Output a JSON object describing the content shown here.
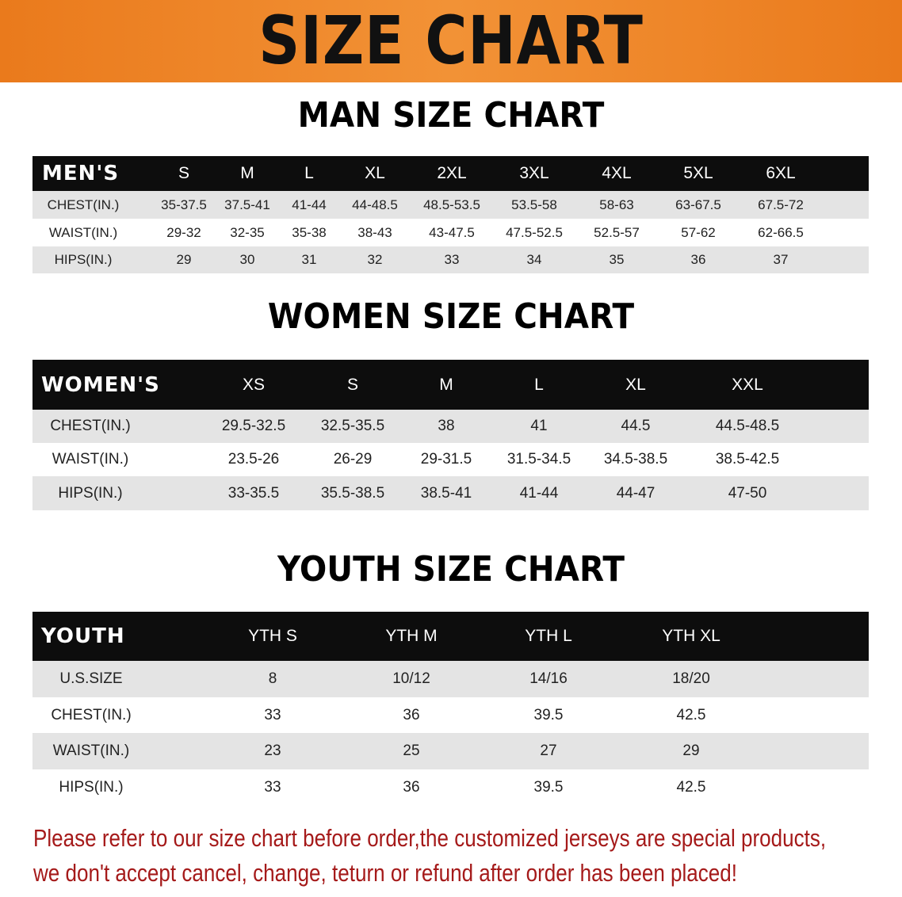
{
  "title": "SIZE CHART",
  "colors": {
    "banner": "#ea7a1c",
    "header_row": "#0d0d0d",
    "stripe": "#e4e4e4",
    "note": "#a51a1a"
  },
  "men": {
    "title": "MAN SIZE CHART",
    "header": [
      "MEN'S",
      "S",
      "M",
      "L",
      "XL",
      "2XL",
      "3XL",
      "4XL",
      "5XL",
      "6XL"
    ],
    "rows": [
      [
        "CHEST(IN.)",
        "35-37.5",
        "37.5-41",
        "41-44",
        "44-48.5",
        "48.5-53.5",
        "53.5-58",
        "58-63",
        "63-67.5",
        "67.5-72"
      ],
      [
        "WAIST(IN.)",
        "29-32",
        "32-35",
        "35-38",
        "38-43",
        "43-47.5",
        "47.5-52.5",
        "52.5-57",
        "57-62",
        "62-66.5"
      ],
      [
        "HIPS(IN.)",
        "29",
        "30",
        "31",
        "32",
        "33",
        "34",
        "35",
        "36",
        "37"
      ]
    ]
  },
  "women": {
    "title": "WOMEN SIZE CHART",
    "header": [
      "WOMEN'S",
      "XS",
      "S",
      "M",
      "L",
      "XL",
      "XXL"
    ],
    "rows": [
      [
        "CHEST(IN.)",
        "29.5-32.5",
        "32.5-35.5",
        "38",
        "41",
        "44.5",
        "44.5-48.5"
      ],
      [
        "WAIST(IN.)",
        "23.5-26",
        "26-29",
        "29-31.5",
        "31.5-34.5",
        "34.5-38.5",
        "38.5-42.5"
      ],
      [
        "HIPS(IN.)",
        "33-35.5",
        "35.5-38.5",
        "38.5-41",
        "41-44",
        "44-47",
        "47-50"
      ]
    ]
  },
  "youth": {
    "title": "YOUTH SIZE CHART",
    "header": [
      "YOUTH",
      "YTH S",
      "YTH M",
      "YTH L",
      "YTH XL"
    ],
    "rows": [
      [
        "U.S.SIZE",
        "8",
        "10/12",
        "14/16",
        "18/20"
      ],
      [
        "CHEST(IN.)",
        "33",
        "36",
        "39.5",
        "42.5"
      ],
      [
        "WAIST(IN.)",
        "23",
        "25",
        "27",
        "29"
      ],
      [
        "HIPS(IN.)",
        "33",
        "36",
        "39.5",
        "42.5"
      ]
    ]
  },
  "note": {
    "line1": "Please refer to our size chart before order,the customized jerseys are special products,",
    "line2": "we don't accept cancel, change, teturn or refund after order has been placed!"
  }
}
